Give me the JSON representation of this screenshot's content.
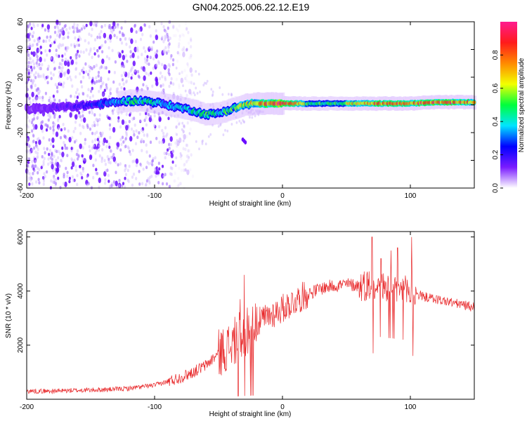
{
  "title": "GN04.2025.006.22.12.E19",
  "chart_data": [
    {
      "type": "heatmap",
      "name": "spectrogram",
      "xlabel": "Height of straight line (km)",
      "ylabel": "Frequency (Hz)",
      "xlim": [
        -200,
        150
      ],
      "ylim": [
        -60,
        60
      ],
      "x_ticks": [
        -200,
        -100,
        0,
        100
      ],
      "x_tick_labels": [
        "-200",
        "-100",
        "0",
        "100"
      ],
      "y_ticks": [
        -60,
        -40,
        -20,
        0,
        20,
        40,
        60
      ],
      "y_tick_labels": [
        "-60",
        "-40",
        "-20",
        "0",
        "20",
        "40",
        "60"
      ],
      "ridge": {
        "description_x": [
          -200,
          -180,
          -160,
          -140,
          -120,
          -110,
          -100,
          -90,
          -80,
          -70,
          -60,
          -50,
          -40,
          -30,
          -20,
          -10,
          0,
          20,
          40,
          60,
          80,
          100,
          120,
          150
        ],
        "freq_hz": [
          -3,
          -2,
          -1,
          1,
          3,
          3,
          2,
          0,
          -2,
          -4,
          -7,
          -6,
          -3,
          0,
          1,
          1,
          1,
          1,
          1,
          1,
          1,
          1,
          2,
          2
        ],
        "amplitude": [
          0.1,
          0.15,
          0.2,
          0.3,
          0.45,
          0.5,
          0.45,
          0.4,
          0.4,
          0.45,
          0.5,
          0.45,
          0.55,
          0.65,
          0.75,
          0.9,
          1.0,
          0.55,
          0.5,
          0.75,
          0.9,
          0.85,
          0.9,
          0.8
        ]
      },
      "noise_edge_km": -85,
      "colorbar": {
        "label": "Normalized spectral amplitude",
        "range": [
          0,
          1
        ],
        "ticks": [
          0.0,
          0.2,
          0.4,
          0.6,
          0.8
        ],
        "tick_labels": [
          "0.0",
          "0.2",
          "0.4",
          "0.6",
          "0.8"
        ],
        "colors": [
          "#ffffff",
          "#7a1cff",
          "#0000ff",
          "#00e5ff",
          "#00ff3c",
          "#f2ff00",
          "#ff8a00",
          "#ff1b1b",
          "#ff1b8f"
        ]
      }
    },
    {
      "type": "line",
      "name": "snr",
      "xlabel": "Height of straight line (km)",
      "ylabel": "SNR (10 * v/v)",
      "xlim": [
        -200,
        150
      ],
      "ylim": [
        0,
        6200
      ],
      "x_ticks": [
        -200,
        -100,
        0,
        100
      ],
      "x_tick_labels": [
        "-200",
        "-100",
        "0",
        "100"
      ],
      "y_ticks": [
        2000,
        4000,
        6000
      ],
      "y_tick_labels": [
        "2000",
        "4000",
        "6000"
      ],
      "color": "#e8282a",
      "envelope": {
        "x": [
          -200,
          -180,
          -160,
          -140,
          -120,
          -100,
          -90,
          -80,
          -70,
          -60,
          -50,
          -40,
          -35,
          -30,
          -25,
          -20,
          -10,
          0,
          10,
          20,
          30,
          40,
          50,
          60,
          70,
          80,
          90,
          100,
          110,
          120,
          130,
          140,
          150
        ],
        "y": [
          300,
          300,
          330,
          350,
          400,
          520,
          650,
          800,
          1000,
          1250,
          1700,
          2000,
          2300,
          2400,
          2650,
          2800,
          3100,
          3350,
          3650,
          3900,
          4100,
          4200,
          4250,
          4200,
          4250,
          4150,
          4050,
          3950,
          3800,
          3700,
          3600,
          3500,
          3400
        ]
      },
      "spikes": [
        {
          "x": -30,
          "y": 4600
        },
        {
          "x": -33,
          "y": 3700
        },
        {
          "x": 70,
          "y": 6000
        },
        {
          "x": 71,
          "y": 1700
        },
        {
          "x": 77,
          "y": 5200
        },
        {
          "x": 85,
          "y": 5500
        },
        {
          "x": 90,
          "y": 5600
        },
        {
          "x": 101,
          "y": 6000
        },
        {
          "x": 102,
          "y": 1600
        }
      ]
    }
  ]
}
